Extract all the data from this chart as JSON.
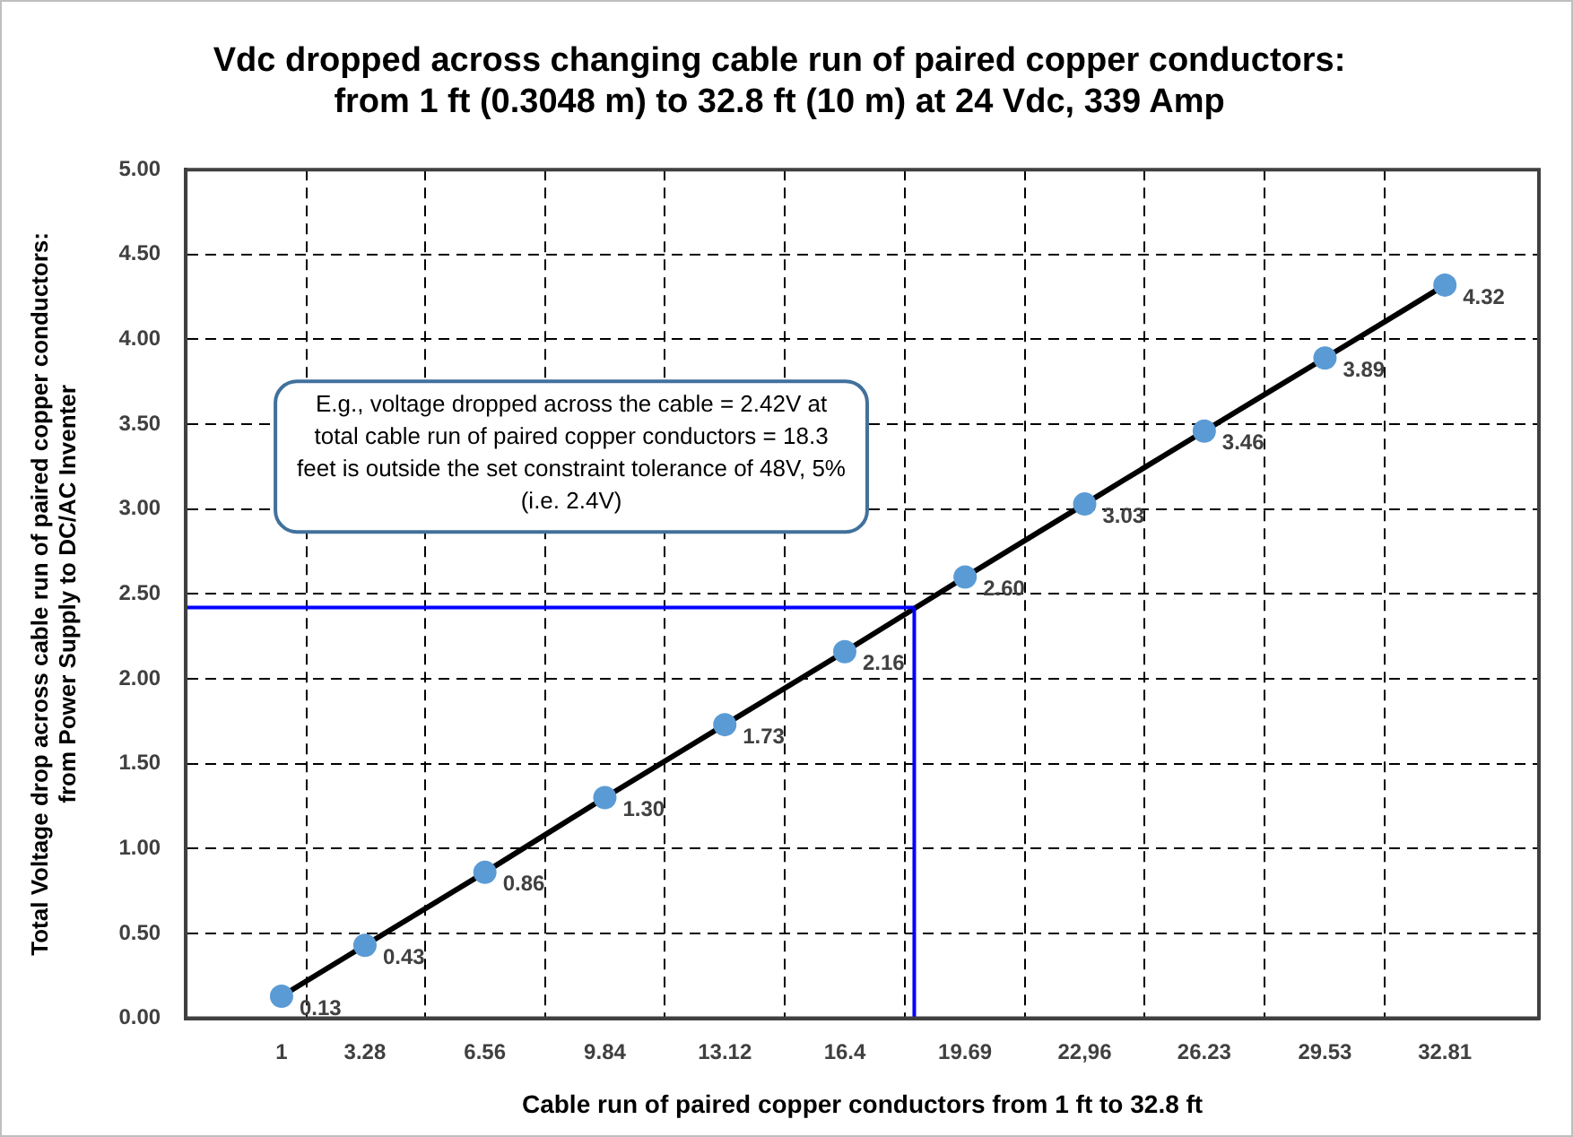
{
  "chart_data": {
    "type": "line",
    "title": "Vdc dropped across changing cable run of paired copper conductors:\nfrom 1 ft (0.3048 m) to 32.8 ft (10 m) at 24 Vdc, 339 Amp",
    "xlabel": "Cable run of paired copper conductors from 1 ft to 32.8 ft",
    "ylabel": "Total Voltage drop across cable run of paired copper conductors:\nfrom Power Supply to DC/AC Inventer",
    "x": [
      1,
      3.28,
      6.56,
      9.84,
      13.12,
      16.4,
      19.69,
      22.96,
      26.23,
      29.53,
      32.81
    ],
    "series": [
      {
        "color": "#000000",
        "colors": [
          "#5b9bd5",
          "#5b9bd5",
          "#5b9bd5",
          "#5b9bd5",
          "#5b9bd5",
          "#5b9bd5",
          "#5b9bd5",
          "#5b9bd5",
          "#5b9bd5",
          "#5b9bd5",
          "#5b9bd5"
        ],
        "values": [
          0.13,
          0.43,
          0.86,
          1.3,
          1.73,
          2.16,
          2.6,
          3.03,
          3.46,
          3.89,
          4.32
        ],
        "value_labels": [
          "0.13",
          "0.43",
          "0.86",
          "1.30",
          "1.73",
          "2.16",
          "2.60",
          "3.03",
          "3.46",
          "3.89",
          "4.32"
        ]
      }
    ],
    "xlim": [
      -1.62,
      35.38
    ],
    "xticks": [
      1,
      {
        "value": 1.68,
        "label": null
      },
      3.28,
      {
        "value": 4.92,
        "label": null
      },
      6.56,
      {
        "value": 8.2,
        "label": null
      },
      9.84,
      {
        "value": 11.48,
        "label": null
      },
      13.12,
      {
        "value": 14.76,
        "label": null
      },
      16.4,
      {
        "value": 18.04,
        "label": null
      },
      19.69,
      {
        "value": 21.33,
        "label": null
      },
      {
        "value": 22.96,
        "label": "22,96"
      },
      {
        "value": 24.6,
        "label": null
      },
      26.23,
      {
        "value": 27.88,
        "label": null
      },
      29.53,
      {
        "value": 31.17,
        "label": null
      },
      32.81
    ],
    "ylim": [
      0,
      5
    ],
    "yticks": [
      {
        "value": 0,
        "label": "0.00"
      },
      {
        "value": 0.5,
        "label": "0.50"
      },
      {
        "value": 1,
        "label": "1.00"
      },
      {
        "value": 1.5,
        "label": "1.50"
      },
      {
        "value": 2,
        "label": "2.00"
      },
      {
        "value": 2.5,
        "label": "2.50"
      },
      {
        "value": 3,
        "label": "3.00"
      },
      {
        "value": 3.5,
        "label": "3.50"
      },
      {
        "value": 4,
        "label": "4.00"
      },
      {
        "value": 4.5,
        "label": "4.50"
      },
      {
        "value": 5,
        "label": "5.00"
      }
    ],
    "ref_lines": [
      {
        "axis": "y",
        "value": 2.42,
        "color": "#0000ff"
      },
      {
        "axis": "x",
        "value": 18.3,
        "color": "#0000ff"
      }
    ],
    "annotations": [
      "E.g., voltage dropped across the cable = 2.42V at\ntotal cable run of paired copper conductors = 18.3\nfeet is outside the set constraint tolerance of 48V, 5%\n(i.e. 2.4V)"
    ],
    "grid": true,
    "legend": false,
    "marker": "circle"
  }
}
